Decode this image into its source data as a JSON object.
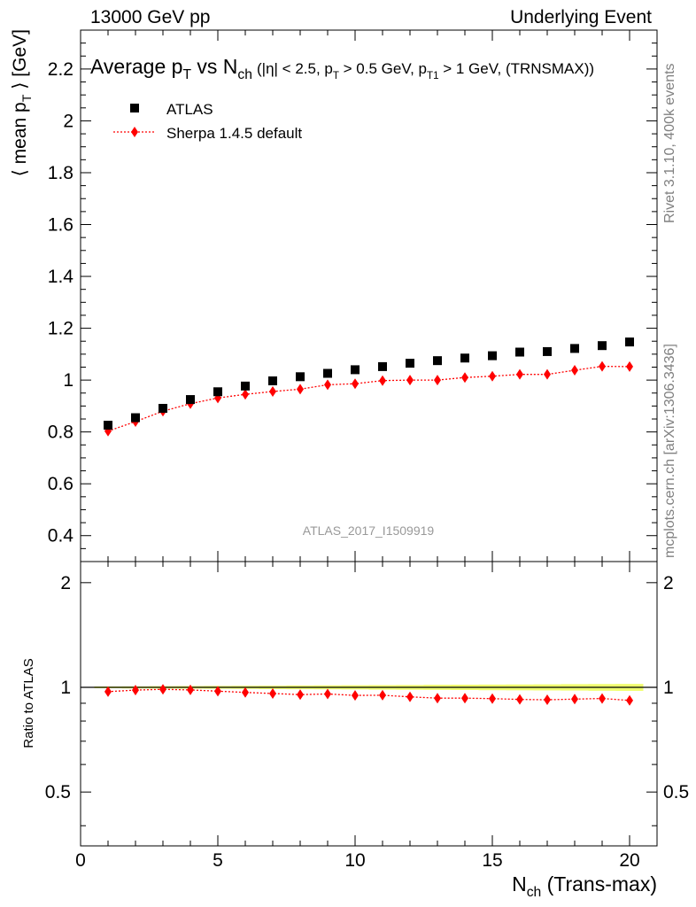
{
  "header": {
    "left": "13000 GeV pp",
    "right": "Underlying Event"
  },
  "side_labels": {
    "rivet": "Rivet 3.1.10,  400k events",
    "mcplots": "mcplots.cern.ch [arXiv:1306.3436]"
  },
  "watermark": "ATLAS_2017_I1509919",
  "colors": {
    "data": "#000000",
    "mc": "#ff0000",
    "band": "#f0ff70",
    "side_text": "#808080"
  },
  "chart_data": [
    {
      "type": "scatter",
      "title_main": "Average p",
      "title_main_sub": "T",
      "title_vs": " vs N",
      "title_vs_sub": "ch",
      "title_cuts": " (|η| < 2.5, p",
      "title_cuts_sub1": "T",
      "title_cuts_2": " > 0.5 GeV, p",
      "title_cuts_sub2": "T1",
      "title_cuts_3": " > 1 GeV, (TRNSMAX))",
      "ylabel": "⟨ mean p",
      "ylabel_sub": "T",
      "ylabel_tail": " ⟩ [GeV]",
      "xlim": [
        0,
        21
      ],
      "ylim": [
        0.3,
        2.35
      ],
      "yticks": [
        "0.4",
        "0.6",
        "0.8",
        "1",
        "1.2",
        "1.4",
        "1.6",
        "1.8",
        "2",
        "2.2"
      ],
      "legend_position": "top-left",
      "x": [
        1,
        2,
        3,
        4,
        5,
        6,
        7,
        8,
        9,
        10,
        11,
        12,
        13,
        14,
        15,
        16,
        17,
        18,
        19,
        20
      ],
      "series": [
        {
          "name": "ATLAS",
          "marker": "square",
          "values": [
            0.826,
            0.855,
            0.891,
            0.925,
            0.955,
            0.977,
            0.997,
            1.013,
            1.026,
            1.04,
            1.052,
            1.065,
            1.075,
            1.085,
            1.094,
            1.108,
            1.11,
            1.122,
            1.133,
            1.147
          ]
        },
        {
          "name": "Sherpa 1.4.5 default",
          "marker": "diamond",
          "values": [
            0.803,
            0.84,
            0.88,
            0.909,
            0.931,
            0.945,
            0.956,
            0.965,
            0.982,
            0.986,
            0.998,
            1.0,
            1.0,
            1.01,
            1.015,
            1.022,
            1.022,
            1.038,
            1.053,
            1.052
          ]
        }
      ]
    },
    {
      "type": "line",
      "ylabel": "Ratio to ATLAS",
      "xlabel": "N",
      "xlabel_sub": "ch",
      "xlabel_tail": " (Trans-max)",
      "xlim": [
        0,
        21
      ],
      "ylim": [
        0.35,
        2.3
      ],
      "xticks": [
        "0",
        "5",
        "10",
        "15",
        "20"
      ],
      "yticks": [
        "0.5",
        "1",
        "2"
      ],
      "x": [
        1,
        2,
        3,
        4,
        5,
        6,
        7,
        8,
        9,
        10,
        11,
        12,
        13,
        14,
        15,
        16,
        17,
        18,
        19,
        20
      ],
      "series": [
        {
          "name": "Sherpa 1.4.5 default",
          "values": [
            0.972,
            0.982,
            0.987,
            0.983,
            0.975,
            0.967,
            0.96,
            0.953,
            0.957,
            0.948,
            0.949,
            0.939,
            0.931,
            0.931,
            0.928,
            0.923,
            0.921,
            0.925,
            0.929,
            0.917
          ]
        }
      ]
    }
  ]
}
